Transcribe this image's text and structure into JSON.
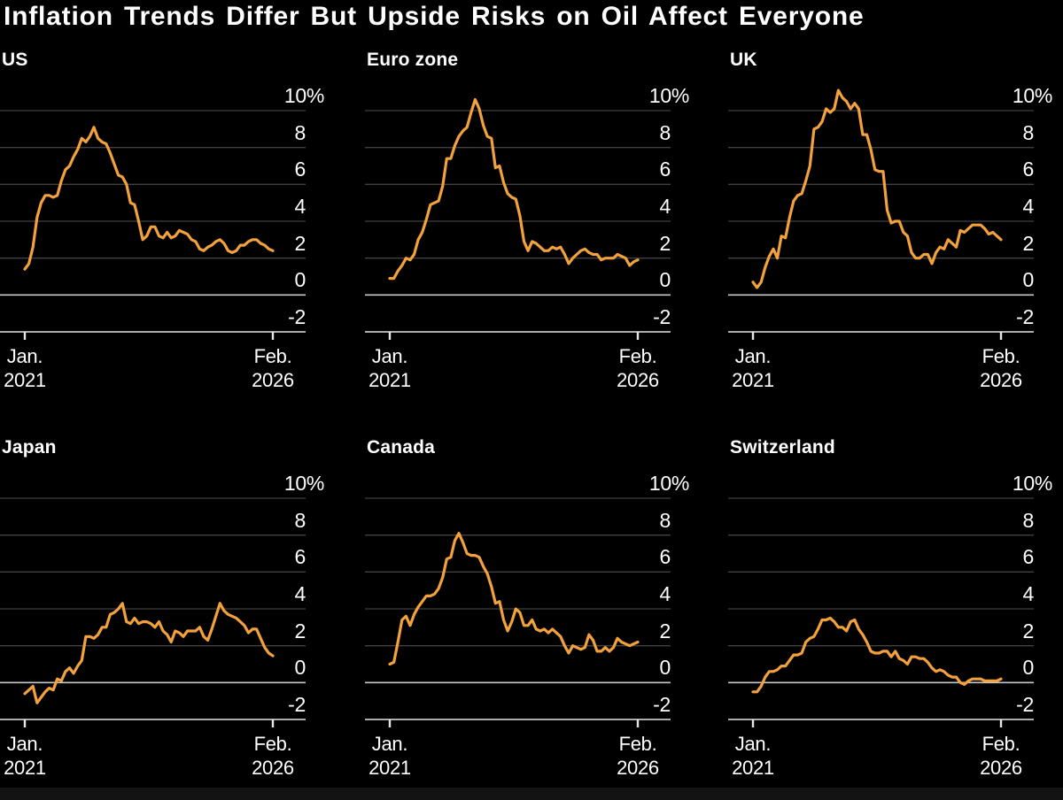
{
  "colors": {
    "background": "#000000",
    "footer_strip": "#131313",
    "text": "#ffffff",
    "gridline": "#414141",
    "zero_line": "#c8c8c8",
    "axis_line": "#e6e6e6",
    "line": "#F2A13C"
  },
  "chart_data": {
    "type": "line",
    "title": "Inflation Trends Differ But Upside Risks on Oil Affect Everyone",
    "unit": "percent YoY",
    "grid": "horizontal",
    "legend": "none",
    "line_color": "#F2A13C",
    "ylim": [
      -2,
      10
    ],
    "y_ticks": [
      10,
      8,
      6,
      4,
      2,
      0,
      -2
    ],
    "y_tick_labels": [
      "10%",
      "8",
      "6",
      "4",
      "2",
      "0",
      "-2"
    ],
    "x_range": [
      "Jan. 2021",
      "Feb. 2026"
    ],
    "x_tick_labels": [
      [
        "Jan.",
        "2021"
      ],
      [
        "Feb.",
        "2026"
      ]
    ],
    "zero_line_highlighted": true,
    "series": [
      {
        "name": "US",
        "values": [
          1.4,
          1.7,
          2.6,
          4.2,
          5.0,
          5.4,
          5.4,
          5.3,
          5.4,
          6.2,
          6.8,
          7.0,
          7.5,
          7.9,
          8.5,
          8.3,
          8.6,
          9.1,
          8.5,
          8.3,
          8.2,
          7.7,
          7.1,
          6.5,
          6.4,
          6.0,
          5.0,
          4.9,
          4.0,
          3.0,
          3.2,
          3.7,
          3.7,
          3.2,
          3.1,
          3.4,
          3.1,
          3.2,
          3.5,
          3.4,
          3.3,
          3.0,
          2.9,
          2.5,
          2.4,
          2.6,
          2.7,
          2.9,
          3.0,
          2.8,
          2.4,
          2.3,
          2.4,
          2.7,
          2.7,
          2.9,
          3.0,
          3.0,
          2.8,
          2.7,
          2.5,
          2.4
        ]
      },
      {
        "name": "Euro zone",
        "values": [
          0.9,
          0.9,
          1.3,
          1.6,
          2.0,
          1.9,
          2.2,
          3.0,
          3.4,
          4.1,
          4.9,
          5.0,
          5.1,
          5.9,
          7.4,
          7.4,
          8.1,
          8.6,
          8.9,
          9.1,
          9.9,
          10.6,
          10.1,
          9.2,
          8.6,
          8.5,
          6.9,
          7.0,
          6.1,
          5.5,
          5.3,
          5.2,
          4.3,
          2.9,
          2.4,
          2.9,
          2.8,
          2.6,
          2.4,
          2.4,
          2.6,
          2.5,
          2.6,
          2.2,
          1.7,
          2.0,
          2.2,
          2.4,
          2.5,
          2.3,
          2.2,
          2.2,
          1.9,
          2.0,
          2.0,
          2.0,
          2.2,
          2.1,
          2.0,
          1.6,
          1.8,
          1.9
        ]
      },
      {
        "name": "UK",
        "values": [
          0.7,
          0.4,
          0.7,
          1.5,
          2.1,
          2.5,
          2.0,
          3.2,
          3.1,
          4.2,
          5.1,
          5.4,
          5.5,
          6.2,
          7.0,
          9.0,
          9.1,
          9.4,
          10.1,
          9.9,
          10.1,
          11.1,
          10.7,
          10.5,
          10.1,
          10.4,
          10.1,
          8.7,
          8.7,
          7.9,
          6.8,
          6.7,
          6.7,
          4.6,
          3.9,
          4.0,
          4.0,
          3.4,
          3.2,
          2.3,
          2.0,
          2.0,
          2.2,
          2.2,
          1.7,
          2.3,
          2.6,
          2.5,
          3.0,
          2.8,
          2.6,
          3.5,
          3.4,
          3.6,
          3.8,
          3.8,
          3.8,
          3.6,
          3.3,
          3.4,
          3.2,
          3.0
        ]
      },
      {
        "name": "Japan",
        "values": [
          -0.6,
          -0.4,
          -0.2,
          -1.1,
          -0.8,
          -0.5,
          -0.3,
          -0.4,
          0.2,
          0.1,
          0.6,
          0.8,
          0.5,
          0.9,
          1.2,
          2.5,
          2.5,
          2.4,
          2.6,
          3.0,
          3.0,
          3.7,
          3.8,
          4.0,
          4.3,
          3.3,
          3.2,
          3.5,
          3.2,
          3.3,
          3.3,
          3.2,
          3.0,
          3.3,
          2.8,
          2.6,
          2.2,
          2.8,
          2.7,
          2.5,
          2.8,
          2.8,
          2.8,
          3.0,
          2.5,
          2.3,
          2.9,
          3.6,
          4.3,
          3.9,
          3.7,
          3.6,
          3.5,
          3.3,
          3.1,
          2.7,
          2.9,
          2.9,
          2.4,
          1.9,
          1.6,
          1.45
        ]
      },
      {
        "name": "Canada",
        "values": [
          1.0,
          1.1,
          2.2,
          3.4,
          3.6,
          3.1,
          3.7,
          4.1,
          4.4,
          4.7,
          4.7,
          4.8,
          5.1,
          5.7,
          6.7,
          6.8,
          7.7,
          8.1,
          7.6,
          7.0,
          6.9,
          6.9,
          6.8,
          6.3,
          5.9,
          5.2,
          4.3,
          4.4,
          3.4,
          2.8,
          3.3,
          4.0,
          3.8,
          3.1,
          3.1,
          3.4,
          2.9,
          2.8,
          2.9,
          2.7,
          2.9,
          2.7,
          2.5,
          2.0,
          1.6,
          2.0,
          1.9,
          1.8,
          1.9,
          2.6,
          2.3,
          1.7,
          1.7,
          1.9,
          1.7,
          1.9,
          2.4,
          2.2,
          2.1,
          2.0,
          2.1,
          2.2
        ]
      },
      {
        "name": "Switzerland",
        "values": [
          -0.5,
          -0.5,
          -0.2,
          0.3,
          0.6,
          0.6,
          0.7,
          0.9,
          0.9,
          1.2,
          1.5,
          1.5,
          1.6,
          2.2,
          2.4,
          2.5,
          2.9,
          3.4,
          3.4,
          3.5,
          3.3,
          3.0,
          3.0,
          2.8,
          3.3,
          3.4,
          2.9,
          2.6,
          2.2,
          1.7,
          1.6,
          1.6,
          1.7,
          1.7,
          1.4,
          1.7,
          1.3,
          1.2,
          1.0,
          1.4,
          1.4,
          1.3,
          1.3,
          1.1,
          0.8,
          0.6,
          0.7,
          0.6,
          0.4,
          0.3,
          0.3,
          0.0,
          -0.1,
          0.1,
          0.2,
          0.2,
          0.2,
          0.1,
          0.1,
          0.1,
          0.1,
          0.2
        ]
      }
    ]
  }
}
